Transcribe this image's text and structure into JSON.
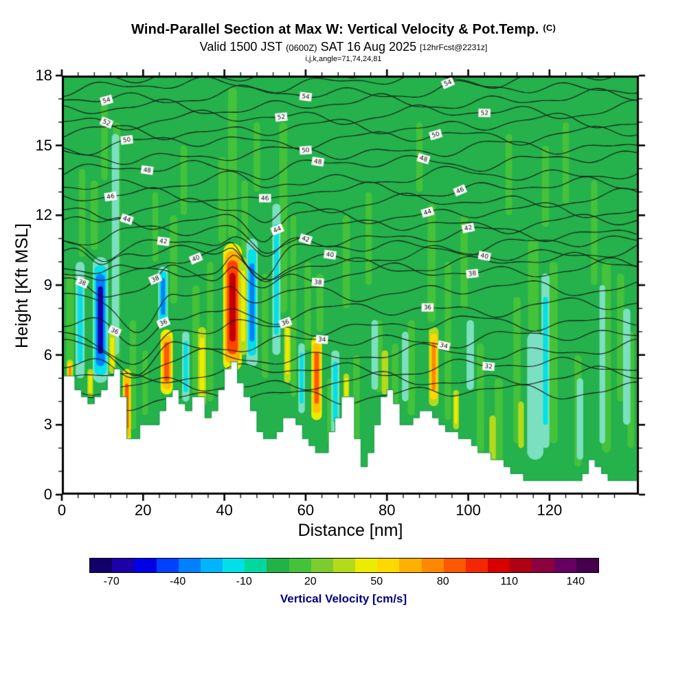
{
  "title": {
    "main": "Wind-Parallel Section at Max W: Vertical Velocity & Pot.Temp.",
    "unit": "(C)",
    "valid_prefix": "Valid 1500 JST",
    "valid_zulu": "(0600Z)",
    "valid_date": "SAT 16 Aug 2025",
    "fcst": "[12hrFcst@2231z]",
    "meta": "i,j,k,angle=71,74,24,81"
  },
  "chart_data": {
    "type": "heatmap",
    "title": "Wind-Parallel Section at Max W: Vertical Velocity & Pot.Temp. (C)",
    "subtitle": "Valid 1500 JST (0600Z) SAT 16 Aug 2025 [12hrFcst@2231z]",
    "xlabel": "Distance [nm]",
    "ylabel": "Height [Kft MSL]",
    "x_range": [
      0,
      142
    ],
    "y_range": [
      0,
      18
    ],
    "x_ticks": [
      0,
      20,
      40,
      60,
      80,
      100,
      120
    ],
    "x_minor_step": 4,
    "y_ticks": [
      0,
      3,
      6,
      9,
      12,
      15,
      18
    ],
    "y_minor_step": 1,
    "grid": false,
    "field_background": "#25b14b",
    "colorbar": {
      "label": "Vertical Velocity [cm/s]",
      "units": "cm/s",
      "range": [
        -80,
        150
      ],
      "tick_values": [
        -70,
        -40,
        -10,
        20,
        50,
        80,
        110,
        140
      ],
      "segment_colors": [
        "#12006a",
        "#1c00a8",
        "#0000e6",
        "#0040ff",
        "#0080ff",
        "#00b4ff",
        "#00e0e8",
        "#00d8a0",
        "#22b24a",
        "#44c23a",
        "#7ccc2e",
        "#b4da1c",
        "#ecec00",
        "#ffd800",
        "#ffb000",
        "#ff8800",
        "#ff5800",
        "#f42800",
        "#d80000",
        "#b00014",
        "#8c0040",
        "#660060",
        "#44004c"
      ]
    },
    "isentropes": {
      "units": "C",
      "theta_min": 30,
      "theta_max": 56,
      "line_color": "#141414",
      "theta_base": {
        "30": 4.0,
        "31": 4.55,
        "32": 5.1,
        "33": 5.7,
        "34": 6.3,
        "35": 6.95,
        "36": 7.6,
        "37": 8.4,
        "38": 9.2,
        "39": 9.55,
        "40": 9.9,
        "41": 10.3,
        "42": 10.75,
        "43": 11.2,
        "44": 11.7,
        "45": 12.2,
        "46": 12.75,
        "47": 13.3,
        "48": 13.9,
        "49": 14.45,
        "50": 15.0,
        "51": 15.5,
        "52": 16.0,
        "53": 16.5,
        "54": 17.0,
        "55": 17.45,
        "56": 17.9
      },
      "labels": [
        {
          "t": 54,
          "x": [
            11,
            60,
            95
          ]
        },
        {
          "t": 52,
          "x": [
            11,
            54,
            104
          ]
        },
        {
          "t": 50,
          "x": [
            16,
            60,
            92
          ]
        },
        {
          "t": 48,
          "x": [
            21,
            63,
            89
          ]
        },
        {
          "t": 46,
          "x": [
            12,
            50,
            98
          ]
        },
        {
          "t": 44,
          "x": [
            16,
            53,
            90
          ]
        },
        {
          "t": 42,
          "x": [
            25,
            60,
            100
          ]
        },
        {
          "t": 40,
          "x": [
            33,
            66,
            104
          ]
        },
        {
          "t": 38,
          "x": [
            5,
            23,
            63,
            101
          ]
        },
        {
          "t": 36,
          "x": [
            13,
            25,
            55,
            90
          ]
        },
        {
          "t": 34,
          "x": [
            64,
            94
          ]
        },
        {
          "t": 32,
          "x": [
            105
          ]
        }
      ]
    },
    "terrain_profile": [
      [
        0,
        5.2
      ],
      [
        2,
        4.9
      ],
      [
        4,
        4.4
      ],
      [
        6,
        4.0
      ],
      [
        8,
        4.1
      ],
      [
        10,
        4.5
      ],
      [
        12,
        5.3
      ],
      [
        13,
        5.6
      ],
      [
        14,
        4.8
      ],
      [
        15,
        3.2
      ],
      [
        16,
        2.3
      ],
      [
        17,
        2.0
      ],
      [
        18,
        2.6
      ],
      [
        19,
        3.1
      ],
      [
        20,
        3.3
      ],
      [
        21,
        2.9
      ],
      [
        22,
        2.7
      ],
      [
        24,
        3.6
      ],
      [
        26,
        4.5
      ],
      [
        27,
        4.7
      ],
      [
        28,
        4.4
      ],
      [
        29,
        3.9
      ],
      [
        30,
        3.6
      ],
      [
        31,
        3.9
      ],
      [
        32,
        4.1
      ],
      [
        33,
        4.3
      ],
      [
        34,
        3.9
      ],
      [
        35,
        3.4
      ],
      [
        36,
        3.2
      ],
      [
        37,
        3.6
      ],
      [
        38,
        4.3
      ],
      [
        39,
        5.0
      ],
      [
        40,
        5.5
      ],
      [
        41,
        5.8
      ],
      [
        42,
        5.4
      ],
      [
        43,
        4.8
      ],
      [
        44,
        4.4
      ],
      [
        45,
        4.2
      ],
      [
        46,
        3.9
      ],
      [
        47,
        3.4
      ],
      [
        48,
        2.8
      ],
      [
        50,
        2.4
      ],
      [
        52,
        2.6
      ],
      [
        54,
        3.2
      ],
      [
        55,
        3.5
      ],
      [
        56,
        3.4
      ],
      [
        57,
        3.1
      ],
      [
        58,
        2.7
      ],
      [
        60,
        2.2
      ],
      [
        62,
        1.9
      ],
      [
        63,
        1.7
      ],
      [
        64,
        1.9
      ],
      [
        65,
        2.3
      ],
      [
        66,
        2.8
      ],
      [
        67,
        3.3
      ],
      [
        68,
        3.9
      ],
      [
        69,
        4.2
      ],
      [
        70,
        4.4
      ],
      [
        71,
        3.8
      ],
      [
        72,
        2.3
      ],
      [
        73,
        1.2
      ],
      [
        74,
        1.0
      ],
      [
        75,
        1.6
      ],
      [
        76,
        2.5
      ],
      [
        77,
        3.3
      ],
      [
        78,
        4.0
      ],
      [
        79,
        4.4
      ],
      [
        80,
        4.5
      ],
      [
        81,
        4.2
      ],
      [
        82,
        3.7
      ],
      [
        83,
        3.2
      ],
      [
        84,
        2.9
      ],
      [
        85,
        3.0
      ],
      [
        86,
        3.2
      ],
      [
        87,
        3.4
      ],
      [
        88,
        3.5
      ],
      [
        89,
        3.6
      ],
      [
        90,
        3.5
      ],
      [
        91,
        3.3
      ],
      [
        92,
        3.0
      ],
      [
        94,
        2.7
      ],
      [
        96,
        2.6
      ],
      [
        98,
        2.4
      ],
      [
        100,
        2.2
      ],
      [
        102,
        1.9
      ],
      [
        104,
        1.7
      ],
      [
        106,
        1.5
      ],
      [
        108,
        1.3
      ],
      [
        110,
        1.0
      ],
      [
        112,
        0.8
      ],
      [
        114,
        0.7
      ],
      [
        116,
        0.6
      ],
      [
        118,
        0.6
      ],
      [
        120,
        0.6
      ],
      [
        122,
        0.7
      ],
      [
        124,
        0.6
      ],
      [
        126,
        0.6
      ],
      [
        128,
        0.8
      ],
      [
        129,
        1.2
      ],
      [
        130,
        1.5
      ],
      [
        131,
        1.3
      ],
      [
        132,
        0.9
      ],
      [
        134,
        0.7
      ],
      [
        136,
        0.6
      ],
      [
        138,
        0.6
      ],
      [
        140,
        0.7
      ],
      [
        142,
        0.8
      ]
    ],
    "streak_styles": {
      "light": [
        "#44c23a"
      ],
      "lightcyan": [
        "#7be0c0"
      ],
      "cyan": [
        "#7be0c0",
        "#00e0e8"
      ],
      "blue": [
        "#7be0c0",
        "#00e0e8",
        "#0080ff"
      ],
      "deepblue": [
        "#7be0c0",
        "#00e0e8",
        "#0080ff",
        "#1c00a8"
      ],
      "yellowgreen": [
        "#b4da1c"
      ],
      "yellow": [
        "#b4da1c",
        "#ecec00"
      ],
      "orange": [
        "#b4da1c",
        "#ffd800",
        "#ff8800"
      ],
      "red": [
        "#ecec00",
        "#ffc000",
        "#ff5800"
      ],
      "deepred": [
        "#ecec00",
        "#ffb000",
        "#ff4400",
        "#c00000"
      ]
    },
    "light_streaks": [
      [
        2,
        0.9,
        5.2,
        9.5
      ],
      [
        5,
        0.8,
        10.2,
        14
      ],
      [
        8,
        0.9,
        10.5,
        13.5
      ],
      [
        10.5,
        0.8,
        13.5,
        17
      ],
      [
        13.5,
        0.9,
        5.8,
        16
      ],
      [
        17.5,
        0.8,
        2.8,
        7.5
      ],
      [
        20.5,
        0.7,
        3.4,
        6.2
      ],
      [
        23,
        0.7,
        10,
        13
      ],
      [
        27.5,
        0.9,
        8.2,
        12
      ],
      [
        30,
        0.8,
        12,
        15
      ],
      [
        33,
        0.9,
        4.3,
        9
      ],
      [
        36.5,
        0.8,
        4,
        10
      ],
      [
        39.5,
        1,
        10.8,
        14.5
      ],
      [
        42,
        1.1,
        11,
        17.5
      ],
      [
        45,
        0.8,
        10.2,
        13.5
      ],
      [
        48,
        0.8,
        13,
        16
      ],
      [
        50,
        0.8,
        5,
        9.5
      ],
      [
        54.5,
        1,
        7.8,
        16
      ],
      [
        57,
        0.7,
        4.2,
        12
      ],
      [
        60.5,
        0.8,
        6.2,
        10
      ],
      [
        63.5,
        0.9,
        7,
        9.5
      ],
      [
        66,
        0.7,
        2.2,
        5
      ],
      [
        70,
        0.9,
        8,
        12
      ],
      [
        72.5,
        0.8,
        2,
        6
      ],
      [
        75.5,
        0.8,
        9,
        13
      ],
      [
        78,
        0.9,
        4.4,
        7.5
      ],
      [
        82,
        0.8,
        3.2,
        6.5
      ],
      [
        86,
        0.9,
        3.4,
        7.5
      ],
      [
        88,
        0.8,
        13,
        16
      ],
      [
        91,
        1,
        7.4,
        12.5
      ],
      [
        95,
        0.8,
        3.2,
        10
      ],
      [
        99,
        0.9,
        8,
        12
      ],
      [
        103,
        0.9,
        1.8,
        6.5
      ],
      [
        107.5,
        1,
        1.2,
        5
      ],
      [
        112,
        0.9,
        2.2,
        8.5
      ],
      [
        116,
        1.3,
        7,
        11
      ],
      [
        110,
        0.8,
        12,
        15.5
      ],
      [
        119,
        0.9,
        11.5,
        15
      ],
      [
        121,
        1,
        2.2,
        10
      ],
      [
        124,
        0.8,
        12.5,
        16
      ],
      [
        127,
        0.9,
        1.2,
        6
      ],
      [
        131,
        0.8,
        9,
        13.5
      ],
      [
        134,
        1.1,
        1.8,
        10
      ],
      [
        137.5,
        0.9,
        4,
        9.5
      ],
      [
        140,
        0.8,
        2,
        7
      ]
    ],
    "downdrafts": [
      [
        4.5,
        1.1,
        5.0,
        10.0,
        "cyan"
      ],
      [
        9.5,
        1.9,
        4.8,
        10.2,
        "deepblue"
      ],
      [
        13.2,
        0.9,
        6.0,
        15.5,
        "lightcyan"
      ],
      [
        24.9,
        1.2,
        7.2,
        9.8,
        "blue"
      ],
      [
        30.5,
        0.9,
        4.0,
        7.0,
        "cyan"
      ],
      [
        46.8,
        1.4,
        5.5,
        11.0,
        "blue"
      ],
      [
        52.8,
        1.0,
        6.0,
        12.5,
        "cyan"
      ],
      [
        59,
        0.8,
        3.5,
        6.5,
        "cyan"
      ],
      [
        67.3,
        1.0,
        2.6,
        6.2,
        "cyan"
      ],
      [
        77,
        0.8,
        4.5,
        7.5,
        "lightcyan"
      ],
      [
        84.5,
        0.8,
        4.0,
        7.0,
        "lightcyan"
      ],
      [
        100.5,
        0.9,
        4.5,
        7.5,
        "lightcyan"
      ],
      [
        116.5,
        2.0,
        1.5,
        7.0,
        "lightcyan"
      ],
      [
        119,
        1.0,
        2.0,
        9.5,
        "cyan"
      ],
      [
        127.5,
        0.8,
        1.5,
        5.0,
        "lightcyan"
      ],
      [
        133,
        0.7,
        2.2,
        9.0,
        "lightcyan"
      ],
      [
        139,
        0.9,
        3.0,
        8.0,
        "lightcyan"
      ]
    ],
    "updrafts": [
      [
        2,
        0.8,
        4.3,
        5.8,
        "orange"
      ],
      [
        7,
        0.7,
        4.2,
        5.4,
        "yellow"
      ],
      [
        12.4,
        0.8,
        5.2,
        7.0,
        "yellow"
      ],
      [
        16,
        1.0,
        2.2,
        5.4,
        "red"
      ],
      [
        25.8,
        1.5,
        4.3,
        7.1,
        "red"
      ],
      [
        34.5,
        1.0,
        3.8,
        7.2,
        "yellow"
      ],
      [
        42,
        2.3,
        5.3,
        10.8,
        "deepred"
      ],
      [
        44.6,
        0.9,
        6.0,
        10.2,
        "yellow"
      ],
      [
        55.5,
        0.8,
        4.8,
        7.6,
        "yellow"
      ],
      [
        62.7,
        1.3,
        3.2,
        6.8,
        "red"
      ],
      [
        70,
        0.7,
        3.9,
        5.2,
        "yellow"
      ],
      [
        79.5,
        0.8,
        4.3,
        6.2,
        "yellowgreen"
      ],
      [
        91.5,
        1.2,
        3.8,
        7.2,
        "orange"
      ],
      [
        97,
        0.7,
        2.8,
        4.5,
        "yellow"
      ],
      [
        106,
        0.8,
        1.3,
        3.4,
        "yellowgreen"
      ],
      [
        113,
        0.7,
        2.0,
        4.0,
        "yellowgreen"
      ]
    ]
  }
}
